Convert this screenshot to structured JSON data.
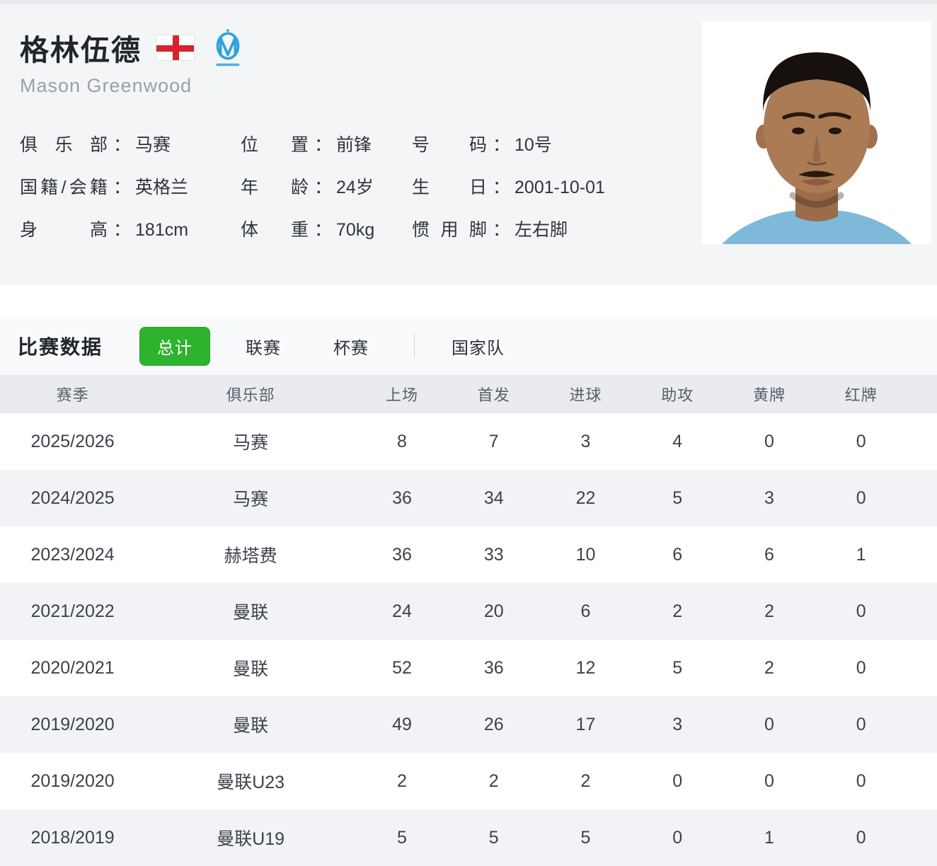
{
  "player": {
    "name_cn": "格林伍德",
    "name_en": "Mason Greenwood",
    "separator": "：",
    "icons": {
      "nationality": "england-flag-icon",
      "club": "marseille-club-icon"
    },
    "info": [
      {
        "label": "俱乐部",
        "value": "马赛"
      },
      {
        "label": "位置",
        "value": "前锋"
      },
      {
        "label": "号码",
        "value": "10号"
      },
      {
        "label": "国籍/会籍",
        "value": "英格兰"
      },
      {
        "label": "年龄",
        "value": "24岁"
      },
      {
        "label": "生日",
        "value": "2001-10-01"
      },
      {
        "label": "身高",
        "value": "181cm"
      },
      {
        "label": "体重",
        "value": "70kg"
      },
      {
        "label": "惯用脚",
        "value": "左右脚"
      }
    ]
  },
  "stats": {
    "section_title": "比赛数据",
    "tabs": [
      {
        "name": "total",
        "label": "总计",
        "active": true
      },
      {
        "name": "league",
        "label": "联赛",
        "active": false
      },
      {
        "name": "cup",
        "label": "杯赛",
        "active": false
      },
      {
        "name": "national-team",
        "label": "国家队",
        "active": false,
        "divider_before": true
      }
    ],
    "table": {
      "columns": [
        "赛季",
        "俱乐部",
        "上场",
        "首发",
        "进球",
        "助攻",
        "黄牌",
        "红牌"
      ],
      "rows": [
        [
          "2025/2026",
          "马赛",
          "8",
          "7",
          "3",
          "4",
          "0",
          "0"
        ],
        [
          "2024/2025",
          "马赛",
          "36",
          "34",
          "22",
          "5",
          "3",
          "0"
        ],
        [
          "2023/2024",
          "赫塔费",
          "36",
          "33",
          "10",
          "6",
          "6",
          "1"
        ],
        [
          "2021/2022",
          "曼联",
          "24",
          "20",
          "6",
          "2",
          "2",
          "0"
        ],
        [
          "2020/2021",
          "曼联",
          "52",
          "36",
          "12",
          "5",
          "2",
          "0"
        ],
        [
          "2019/2020",
          "曼联",
          "49",
          "26",
          "17",
          "3",
          "0",
          "0"
        ],
        [
          "2019/2020",
          "曼联U23",
          "2",
          "2",
          "2",
          "0",
          "0",
          "0"
        ],
        [
          "2018/2019",
          "曼联U19",
          "5",
          "5",
          "5",
          "0",
          "1",
          "0"
        ]
      ]
    }
  },
  "colors": {
    "accent_green": "#2DB32D",
    "flag_red": "#D8232A",
    "club_blue": "#2FA3DC",
    "header_bg": "#E9EBEE",
    "row_alt_bg": "#F2F3F6",
    "card_bg": "#F4F5F7"
  }
}
